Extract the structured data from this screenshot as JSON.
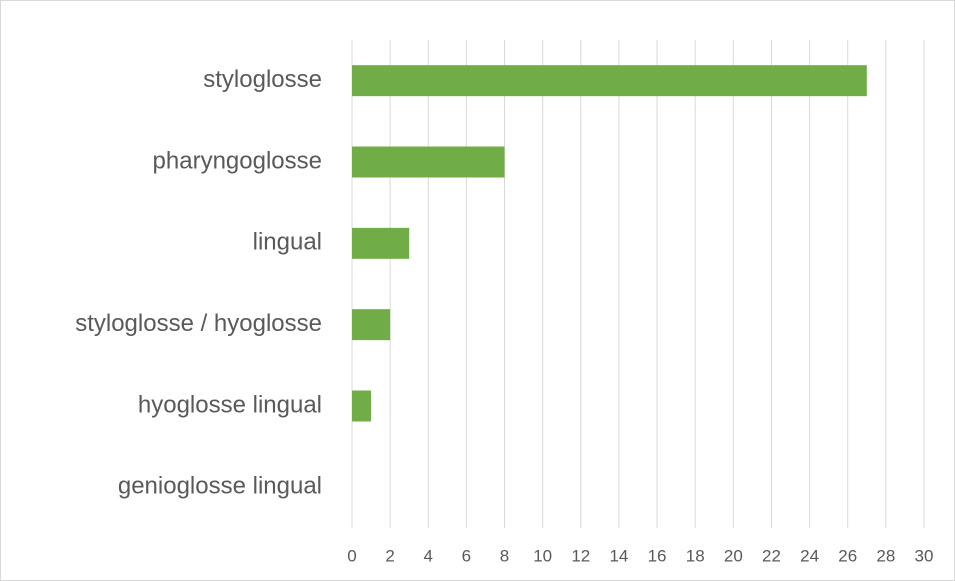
{
  "chart_data": {
    "type": "bar",
    "orientation": "horizontal",
    "categories": [
      "styloglosse",
      "pharyngoglosse",
      "lingual",
      "styloglosse / hyoglosse",
      "hyoglosse lingual",
      "genioglosse lingual"
    ],
    "values": [
      27,
      8,
      3,
      2,
      1,
      0
    ],
    "color": "#70ad47",
    "xlim": [
      0,
      30
    ],
    "xticks": [
      0,
      2,
      4,
      6,
      8,
      10,
      12,
      14,
      16,
      18,
      20,
      22,
      24,
      26,
      28,
      30
    ],
    "grid": true
  }
}
